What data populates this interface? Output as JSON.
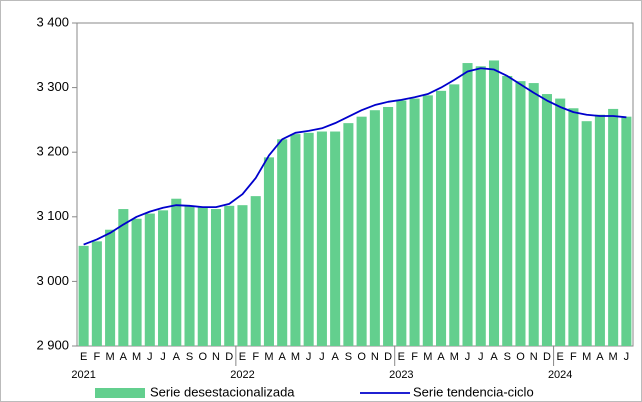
{
  "chart_data": {
    "type": "bar_line",
    "categories": [
      "E",
      "F",
      "M",
      "A",
      "M",
      "J",
      "J",
      "A",
      "S",
      "O",
      "N",
      "D",
      "E",
      "F",
      "M",
      "A",
      "M",
      "J",
      "J",
      "A",
      "S",
      "O",
      "N",
      "D",
      "E",
      "F",
      "M",
      "A",
      "M",
      "J",
      "J",
      "A",
      "S",
      "O",
      "N",
      "D",
      "E",
      "F",
      "M",
      "A",
      "M",
      "J"
    ],
    "year_labels": [
      "2021",
      "2022",
      "2023",
      "2024"
    ],
    "series": [
      {
        "name": "Serie desestacionalizada",
        "type": "bar",
        "color": "#63cf8e",
        "values": [
          3055,
          3062,
          3080,
          3112,
          3097,
          3105,
          3110,
          3128,
          3117,
          3115,
          3112,
          3117,
          3118,
          3132,
          3192,
          3220,
          3228,
          3230,
          3232,
          3232,
          3245,
          3255,
          3265,
          3270,
          3280,
          3283,
          3288,
          3295,
          3305,
          3338,
          3333,
          3342,
          3318,
          3310,
          3307,
          3290,
          3283,
          3268,
          3248,
          3258,
          3267,
          3255
        ]
      },
      {
        "name": "Serie tendencia-ciclo",
        "type": "line",
        "color": "#0000cc",
        "values": [
          3057,
          3065,
          3075,
          3088,
          3100,
          3108,
          3114,
          3118,
          3117,
          3115,
          3115,
          3120,
          3135,
          3160,
          3195,
          3220,
          3230,
          3233,
          3237,
          3245,
          3255,
          3265,
          3273,
          3278,
          3281,
          3285,
          3290,
          3300,
          3312,
          3325,
          3330,
          3328,
          3318,
          3305,
          3292,
          3280,
          3270,
          3262,
          3258,
          3256,
          3256,
          3254
        ]
      }
    ],
    "ylim": [
      2900,
      3400
    ],
    "yticks": [
      {
        "value": 2900,
        "label": "2 900"
      },
      {
        "value": 3000,
        "label": "3 000"
      },
      {
        "value": 3100,
        "label": "3 100"
      },
      {
        "value": 3200,
        "label": "3 200"
      },
      {
        "value": 3300,
        "label": "3 300"
      },
      {
        "value": 3400,
        "label": "3 400"
      }
    ],
    "legend": "bottom"
  }
}
